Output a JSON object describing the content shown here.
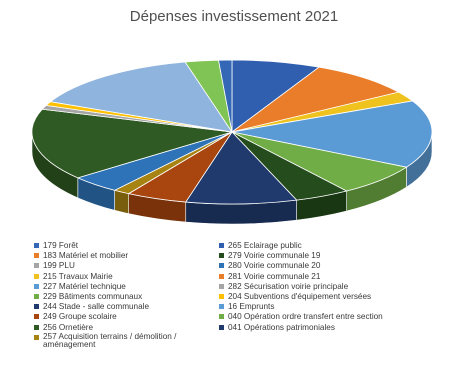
{
  "chart_data": {
    "type": "pie",
    "title": "Dépenses investissement 2021",
    "three_d": true,
    "legend_placement": "bottom",
    "slices": [
      {
        "name": "265 Eclairage public",
        "value": 8.0,
        "color": "#2f5fae"
      },
      {
        "name": "183 Matériel et mobilier",
        "value": 9.5,
        "color": "#ea7d29"
      },
      {
        "name": "215 Travaux Mairie",
        "value": 2.5,
        "color": "#f0c21d"
      },
      {
        "name": "227 Matériel technique",
        "value": 17.0,
        "color": "#5b9bd5"
      },
      {
        "name": "229 Bâtiments communaux",
        "value": 8.0,
        "color": "#70ad47"
      },
      {
        "name": "279 Voirie communale 19",
        "value": 5.0,
        "color": "#244c1c"
      },
      {
        "name": "280 Voirie communale 20",
        "value": 10.0,
        "color": "#203a6e"
      },
      {
        "name": "281 Voirie communale 21",
        "value": 5.5,
        "color": "#a9460f"
      },
      {
        "name": "204 Subventions d'équipement versées",
        "value": 1.5,
        "color": "#a78312"
      },
      {
        "name": "244 Stade - salle communale",
        "value": 4.5,
        "color": "#2e73b8"
      },
      {
        "name": "256 Ornetière",
        "value": 18.0,
        "color": "#2f5a23"
      },
      {
        "name": "282 Sécurisation voirie principale",
        "value": 1.0,
        "color": "#a5a5a5"
      },
      {
        "name": "16 Emprunts",
        "value": 1.0,
        "color": "#ffc000"
      },
      {
        "name": "199 PLU",
        "value": 16.0,
        "color": "#8fb4de"
      },
      {
        "name": "040 Opération ordre transfert entre section",
        "value": 3.0,
        "color": "#7fc454"
      },
      {
        "name": "179 Forêt",
        "value": 1.2,
        "color": "#3467b5"
      }
    ]
  },
  "title": "Dépenses investissement 2021",
  "legend_left": [
    {
      "label": "179 Forêt",
      "color": "#3467b5"
    },
    {
      "label": "183 Matériel et mobilier",
      "color": "#ea7d29"
    },
    {
      "label": "199 PLU",
      "color": "#a5a5a5"
    },
    {
      "label": "215 Travaux Mairie",
      "color": "#f0c21d"
    },
    {
      "label": "227 Matériel technique",
      "color": "#5b9bd5"
    },
    {
      "label": "229 Bâtiments communaux",
      "color": "#70ad47"
    },
    {
      "label": "244 Stade - salle communale",
      "color": "#203a6e"
    },
    {
      "label": "249 Groupe scolaire",
      "color": "#a9460f"
    },
    {
      "label": "256 Ornetière",
      "color": "#2f5a23"
    },
    {
      "label": "257 Acquisition terrains / démolition / aménagement",
      "color": "#a78312"
    }
  ],
  "legend_right": [
    {
      "label": "265 Eclairage public",
      "color": "#2f5fae"
    },
    {
      "label": "279 Voirie communale 19",
      "color": "#244c1c"
    },
    {
      "label": "280 Voirie communale 20",
      "color": "#2e73b8"
    },
    {
      "label": "281 Voirie communale 21",
      "color": "#ea7d29"
    },
    {
      "label": "282 Sécurisation voirie principale",
      "color": "#a5a5a5"
    },
    {
      "label": "204 Subventions d'équipement versées",
      "color": "#ffc000"
    },
    {
      "label": "16 Emprunts",
      "color": "#5b9bd5"
    },
    {
      "label": "040 Opération ordre transfert entre section",
      "color": "#70ad47"
    },
    {
      "label": "041 Opérations patrimoniales",
      "color": "#203a6e"
    }
  ]
}
